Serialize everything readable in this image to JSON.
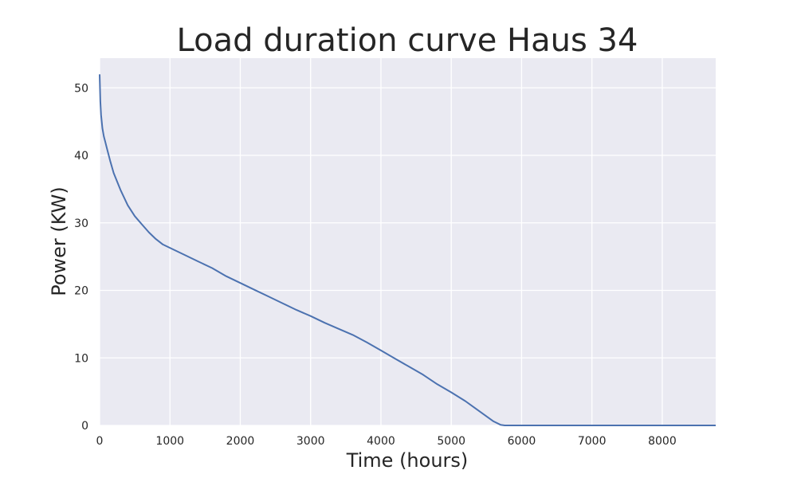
{
  "chart_data": {
    "type": "line",
    "title": "Load duration curve Haus 34",
    "xlabel": "Time (hours)",
    "ylabel": "Power (KW)",
    "xlim": [
      0,
      8760
    ],
    "ylim": [
      0,
      54.4
    ],
    "xticks": [
      0,
      1000,
      2000,
      3000,
      4000,
      5000,
      6000,
      7000,
      8000
    ],
    "yticks": [
      0,
      10,
      20,
      30,
      40,
      50
    ],
    "grid": true,
    "colors": {
      "background": "#EAEAF2",
      "grid": "#FFFFFF",
      "line": "#4C72B0"
    },
    "series": [
      {
        "x": [
          0,
          10,
          20,
          40,
          60,
          80,
          100,
          150,
          200,
          300,
          400,
          500,
          600,
          700,
          800,
          900,
          1000,
          1200,
          1400,
          1600,
          1800,
          2000,
          2200,
          2400,
          2600,
          2800,
          3000,
          3200,
          3400,
          3600,
          3800,
          4000,
          4200,
          4400,
          4600,
          4800,
          5000,
          5200,
          5400,
          5600,
          5700,
          5760,
          5800,
          6000,
          6500,
          7000,
          7500,
          8000,
          8760
        ],
        "y": [
          52,
          48,
          46,
          44,
          42.8,
          42,
          41.2,
          39.2,
          37.4,
          34.8,
          32.6,
          31,
          29.8,
          28.6,
          27.6,
          26.8,
          26.3,
          25.3,
          24.3,
          23.3,
          22.1,
          21.1,
          20.1,
          19.1,
          18.1,
          17.1,
          16.2,
          15.2,
          14.3,
          13.4,
          12.3,
          11.1,
          9.9,
          8.7,
          7.5,
          6.1,
          4.9,
          3.6,
          2.1,
          0.6,
          0.1,
          0,
          0,
          0,
          0,
          0,
          0,
          0,
          0
        ]
      }
    ]
  }
}
